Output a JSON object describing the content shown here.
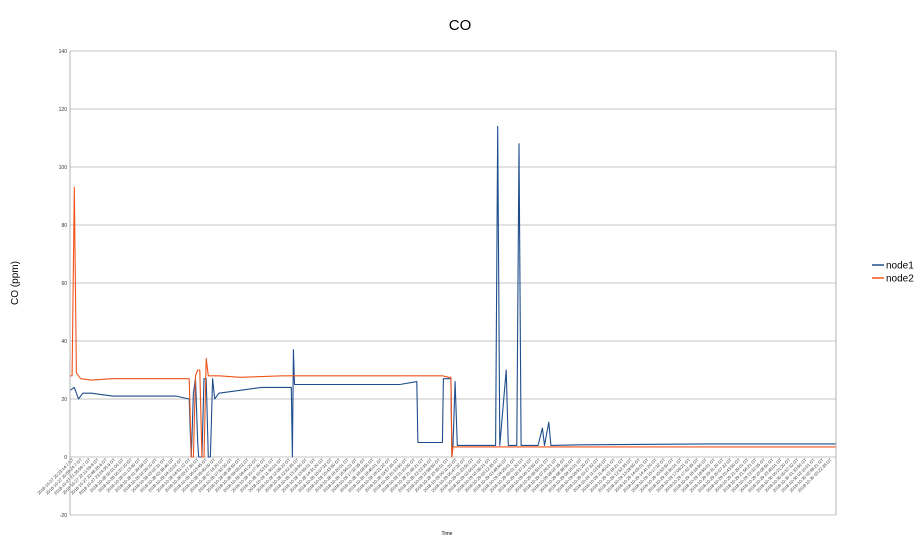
{
  "chart_data": {
    "type": "line",
    "title": "CO",
    "xlabel": "Time",
    "ylabel": "CO (ppm)",
    "ylim": [
      -20,
      140
    ],
    "yticks": [
      -20,
      0,
      20,
      40,
      60,
      80,
      100,
      120,
      140
    ],
    "grid": true,
    "legend_position": "right",
    "colors": {
      "node1": "#1f4e8c",
      "node2": "#f0541c",
      "grid": "#b3b3b3"
    },
    "series": [
      {
        "name": "node1",
        "color": "#1f4e8c",
        "points": [
          [
            0,
            23
          ],
          [
            2,
            24
          ],
          [
            4,
            20
          ],
          [
            6,
            22
          ],
          [
            10,
            22
          ],
          [
            20,
            21
          ],
          [
            30,
            21
          ],
          [
            40,
            21
          ],
          [
            50,
            21
          ],
          [
            56,
            20
          ],
          [
            56.5,
            9
          ],
          [
            57,
            0
          ],
          [
            58,
            22
          ],
          [
            59,
            27
          ],
          [
            60,
            5
          ],
          [
            60.5,
            0
          ],
          [
            62,
            0
          ],
          [
            63,
            27
          ],
          [
            64,
            27
          ],
          [
            65,
            0
          ],
          [
            66,
            0
          ],
          [
            67,
            27
          ],
          [
            68,
            20
          ],
          [
            70,
            22
          ],
          [
            80,
            23
          ],
          [
            90,
            24
          ],
          [
            100,
            24
          ],
          [
            104,
            24
          ],
          [
            104.5,
            0
          ],
          [
            105,
            37
          ],
          [
            105.5,
            25
          ],
          [
            120,
            25
          ],
          [
            140,
            25
          ],
          [
            155,
            25
          ],
          [
            163,
            26
          ],
          [
            163.5,
            5
          ],
          [
            175,
            5
          ],
          [
            175.5,
            27
          ],
          [
            179,
            27
          ],
          [
            179.5,
            0
          ],
          [
            180,
            4
          ],
          [
            181,
            26
          ],
          [
            182,
            4
          ],
          [
            200,
            4
          ],
          [
            201,
            114
          ],
          [
            202,
            4
          ],
          [
            205,
            30
          ],
          [
            206,
            4
          ],
          [
            210,
            4
          ],
          [
            211,
            108
          ],
          [
            212,
            4
          ],
          [
            220,
            4
          ],
          [
            222,
            10
          ],
          [
            223,
            4
          ],
          [
            225,
            12
          ],
          [
            226,
            4
          ],
          [
            240,
            4.2
          ],
          [
            300,
            4.5
          ],
          [
            360,
            4.5
          ]
        ]
      },
      {
        "name": "node2",
        "color": "#f0541c",
        "points": [
          [
            0,
            28
          ],
          [
            1,
            28
          ],
          [
            2,
            93
          ],
          [
            3,
            29
          ],
          [
            5,
            27
          ],
          [
            10,
            26.5
          ],
          [
            20,
            27
          ],
          [
            30,
            27
          ],
          [
            40,
            27
          ],
          [
            50,
            27
          ],
          [
            55,
            27
          ],
          [
            56,
            27
          ],
          [
            57,
            0
          ],
          [
            58,
            0
          ],
          [
            59,
            28
          ],
          [
            60,
            30
          ],
          [
            61,
            30
          ],
          [
            62,
            0
          ],
          [
            63,
            0
          ],
          [
            64,
            34
          ],
          [
            65,
            28
          ],
          [
            70,
            28
          ],
          [
            80,
            27.5
          ],
          [
            100,
            28
          ],
          [
            120,
            28
          ],
          [
            140,
            28
          ],
          [
            160,
            28
          ],
          [
            175,
            28
          ],
          [
            178,
            27.5
          ],
          [
            179,
            27.5
          ],
          [
            179.5,
            0
          ],
          [
            180,
            3.5
          ],
          [
            200,
            3.5
          ],
          [
            240,
            3.5
          ],
          [
            300,
            3.5
          ],
          [
            360,
            3.5
          ]
        ]
      }
    ],
    "xticks": [
      "2018-10-27 20:23:14.7 GT",
      "2018-10-27 20:59:24.7 GT",
      "2018-10-27 21:35:59.7 GT",
      "2018-10-27 22:11:59.8 GT",
      "2018-10-27 22:48:26.6 GT",
      "2018-10-27 23:24:35.9 GT",
      "2018-10-28 00:01:00 GT",
      "2018-10-28 00:37:10 GT",
      "2018-10-28 01:13:40 GT",
      "2018-10-28 01:49:59 GT",
      "2018-10-28 02:26:10 GT",
      "2018-10-28 03:02:31 GT",
      "2018-10-28 03:38:40 GT",
      "2018-10-28 04:15:02 GT",
      "2018-10-28 04:51:12 GT",
      "2018-10-28 05:27:30 GT",
      "2018-10-28 06:03:45 GT",
      "2018-10-28 06:40:00 GT",
      "2018-10-28 07:16:20 GT",
      "2018-10-28 07:52:30 GT",
      "2018-10-28 08:28:50 GT",
      "2018-10-28 09:05:02 GT",
      "2018-10-28 09:41:20 GT",
      "2018-10-28 10:17:30 GT",
      "2018-10-28 10:53:51 GT",
      "2018-10-28 11:30:01 GT",
      "2018-10-28 12:06:22 GT",
      "2018-10-28 12:42:35 GT",
      "2018-10-28 13:18:50 GT",
      "2018-10-28 13:55:01 GT",
      "2018-10-28 14:31:20 GT",
      "2018-10-28 15:07:32 GT",
      "2018-10-28 15:43:50 GT",
      "2018-10-28 16:20:01 GT",
      "2018-10-28 16:56:21 GT",
      "2018-10-28 17:32:35 GT",
      "2018-10-28 18:08:50 GT",
      "2018-10-28 18:45:01 GT",
      "2018-10-28 19:21:22 GT",
      "2018-10-28 19:57:35 GT",
      "2018-10-28 20:33:50 GT",
      "2018-10-28 21:10:00 GT",
      "2018-10-28 21:46:21 GT",
      "2018-10-28 22:22:35 GT",
      "2018-10-28 22:58:50 GT",
      "2018-10-28 23:35:01 GT",
      "2018-10-29 00:11:20 GT",
      "2018-10-29 00:47:32 GT",
      "2018-10-29 01:23:50 GT",
      "2018-10-29 02:00:01 GT",
      "2018-10-29 02:36:21 GT",
      "2018-10-29 03:12:35 GT",
      "2018-10-29 03:48:50 GT",
      "2018-10-29 04:25:01 GT",
      "2018-10-29 05:01:20 GT",
      "2018-10-29 05:37:32 GT",
      "2018-10-29 06:13:50 GT",
      "2018-10-29 06:50:01 GT",
      "2018-10-29 07:26:21 GT",
      "2018-10-29 08:02:35 GT",
      "2018-10-29 08:38:50 GT",
      "2018-10-29 09:15:01 GT",
      "2018-10-29 09:51:20 GT",
      "2018-10-29 10:27:32 GT",
      "2018-10-29 11:03:50 GT",
      "2018-10-29 11:40:01 GT",
      "2018-10-29 12:16:21 GT",
      "2018-10-29 12:52:35 GT",
      "2018-10-29 13:28:50 GT",
      "2018-10-29 14:05:01 GT",
      "2018-10-29 14:41:20 GT",
      "2018-10-29 15:17:32 GT",
      "2018-10-29 15:53:50 GT",
      "2018-10-29 16:30:01 GT",
      "2018-10-29 17:06:21 GT",
      "2018-10-29 17:42:35 GT",
      "2018-10-29 18:18:50 GT",
      "2018-10-29 18:55:01 GT",
      "2018-10-29 19:31:20 GT",
      "2018-10-29 20:07:32 GT",
      "2018-10-29 20:43:50 GT",
      "2018-10-29 21:20:01 GT",
      "2018-10-29 21:56:21 GT",
      "2018-10-29 22:32:35 GT",
      "2018-10-29 23:08:50 GT",
      "2018-10-29 23:45:01 GT",
      "2018-10-30 00:21:20 GT",
      "2018-10-30 00:57:32 GT",
      "2018-10-30 01:33:50 GT",
      "2018-10-30 02:10:01 GT",
      "2018-10-30 02:46:21 GT",
      "2018-10-30 03:22:35 GT"
    ]
  }
}
